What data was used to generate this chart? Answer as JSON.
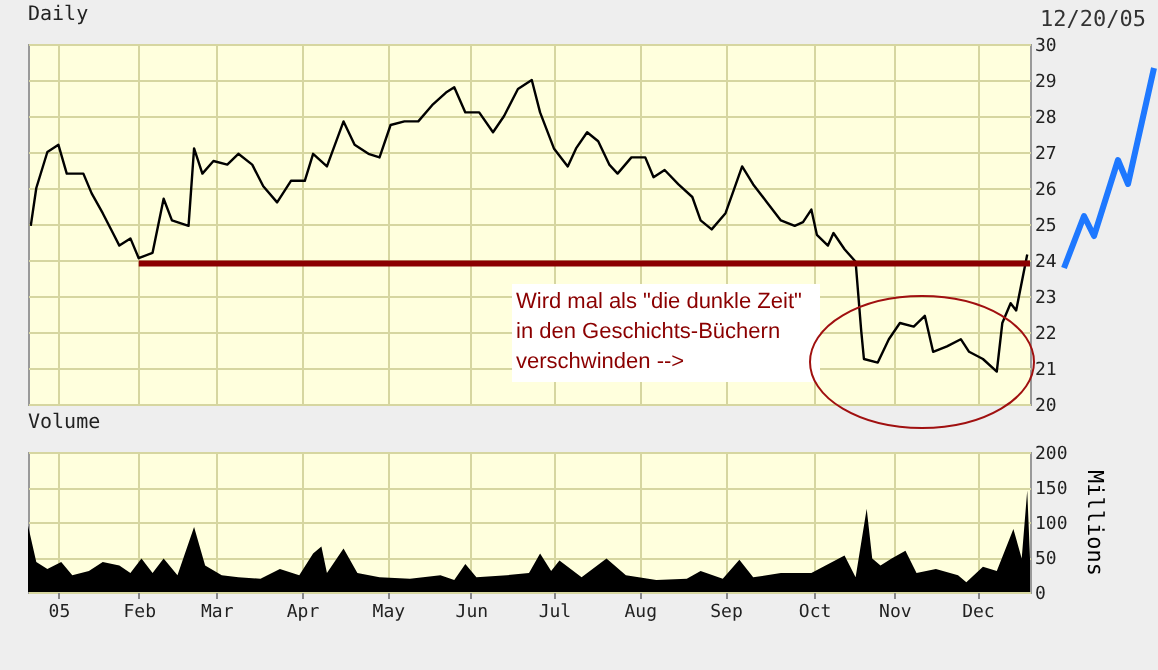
{
  "chart_data": [
    {
      "type": "line",
      "title": "Daily",
      "annotations": [
        "12/20/05",
        "Wird mal als \"die dunkle Zeit\" in den Geschichts-Büchern verschwinden -->"
      ],
      "xlim": [
        "2004-12-23",
        "2005-12-20"
      ],
      "xticks": [
        {
          "value": "2005-01-03",
          "label": null
        },
        {
          "value": "2005-02-01",
          "label": null
        },
        {
          "value": "2005-03-01",
          "label": null
        },
        {
          "value": "2005-04-01",
          "label": null
        },
        {
          "value": "2005-05-02",
          "label": null
        },
        {
          "value": "2005-06-01",
          "label": null
        },
        {
          "value": "2005-07-01",
          "label": null
        },
        {
          "value": "2005-08-01",
          "label": null
        },
        {
          "value": "2005-09-01",
          "label": null
        },
        {
          "value": "2005-10-03",
          "label": null
        },
        {
          "value": "2005-11-01",
          "label": null
        },
        {
          "value": "2005-12-01",
          "label": null
        }
      ],
      "ylim": [
        20,
        30
      ],
      "yticks": [
        20,
        21,
        22,
        23,
        24,
        25,
        26,
        27,
        28,
        29,
        30
      ],
      "grid": true,
      "tick_labels": "y",
      "series": [
        {
          "color": "#000000",
          "x": [
            "2004-12-24",
            "2004-12-26",
            "2004-12-30",
            "2005-01-03",
            "2005-01-06",
            "2005-01-12",
            "2005-01-15",
            "2005-01-19",
            "2005-01-23",
            "2005-01-25",
            "2005-01-29",
            "2005-02-01",
            "2005-02-06",
            "2005-02-10",
            "2005-02-13",
            "2005-02-19",
            "2005-02-21",
            "2005-02-24",
            "2005-02-28",
            "2005-03-05",
            "2005-03-09",
            "2005-03-14",
            "2005-03-18",
            "2005-03-23",
            "2005-03-28",
            "2005-04-02",
            "2005-04-05",
            "2005-04-10",
            "2005-04-16",
            "2005-04-20",
            "2005-04-25",
            "2005-04-29",
            "2005-05-03",
            "2005-05-08",
            "2005-05-13",
            "2005-05-18",
            "2005-05-23",
            "2005-05-26",
            "2005-05-30",
            "2005-06-04",
            "2005-06-09",
            "2005-06-13",
            "2005-06-18",
            "2005-06-23",
            "2005-06-26",
            "2005-07-01",
            "2005-07-06",
            "2005-07-09",
            "2005-07-13",
            "2005-07-17",
            "2005-07-21",
            "2005-07-24",
            "2005-07-29",
            "2005-08-03",
            "2005-08-06",
            "2005-08-10",
            "2005-08-15",
            "2005-08-20",
            "2005-08-23",
            "2005-08-27",
            "2005-09-01",
            "2005-09-04",
            "2005-09-07",
            "2005-09-11",
            "2005-09-16",
            "2005-09-21",
            "2005-09-26",
            "2005-09-29",
            "2005-10-02",
            "2005-10-04",
            "2005-10-08",
            "2005-10-10",
            "2005-10-14",
            "2005-10-18",
            "2005-10-20",
            "2005-10-21",
            "2005-10-26",
            "2005-10-30",
            "2005-11-03",
            "2005-11-08",
            "2005-11-12",
            "2005-11-15",
            "2005-11-20",
            "2005-11-25",
            "2005-11-28",
            "2005-12-03",
            "2005-12-08",
            "2005-12-10",
            "2005-12-13",
            "2005-12-15",
            "2005-12-19"
          ],
          "values": [
            24.95,
            26.0,
            27.0,
            27.2,
            26.4,
            26.4,
            25.85,
            25.3,
            24.7,
            24.4,
            24.6,
            24.05,
            24.2,
            25.7,
            25.1,
            24.95,
            27.1,
            26.4,
            26.75,
            26.65,
            26.95,
            26.65,
            26.05,
            25.6,
            26.2,
            26.2,
            26.95,
            26.6,
            27.85,
            27.2,
            26.95,
            26.85,
            27.75,
            27.85,
            27.85,
            28.3,
            28.65,
            28.8,
            28.1,
            28.1,
            27.55,
            28.0,
            28.75,
            29.0,
            28.1,
            27.1,
            26.6,
            27.1,
            27.55,
            27.3,
            26.65,
            26.4,
            26.85,
            26.85,
            26.3,
            26.5,
            26.1,
            25.75,
            25.1,
            24.85,
            25.3,
            25.95,
            26.6,
            26.1,
            25.6,
            25.1,
            24.95,
            25.05,
            25.4,
            24.7,
            24.4,
            24.75,
            24.3,
            23.95,
            22.05,
            21.25,
            21.15,
            21.8,
            22.25,
            22.15,
            22.45,
            21.45,
            21.6,
            21.8,
            21.45,
            21.25,
            20.9,
            22.25,
            22.8,
            22.6,
            24.15
          ]
        },
        {
          "color": "#8b0000",
          "x": [
            "2005-02-01",
            "2005-12-20"
          ],
          "values": [
            23.9,
            23.9
          ]
        }
      ]
    },
    {
      "type": "area",
      "title": "Volume",
      "ylabel": "Millions",
      "xlim": [
        "2004-12-23",
        "2005-12-20"
      ],
      "xticks": [
        {
          "value": "2005-01-03",
          "label": "05"
        },
        {
          "value": "2005-02-01",
          "label": "Feb"
        },
        {
          "value": "2005-03-01",
          "label": "Mar"
        },
        {
          "value": "2005-04-01",
          "label": "Apr"
        },
        {
          "value": "2005-05-02",
          "label": "May"
        },
        {
          "value": "2005-06-01",
          "label": "Jun"
        },
        {
          "value": "2005-07-01",
          "label": "Jul"
        },
        {
          "value": "2005-08-01",
          "label": "Aug"
        },
        {
          "value": "2005-09-01",
          "label": "Sep"
        },
        {
          "value": "2005-10-03",
          "label": "Oct"
        },
        {
          "value": "2005-11-01",
          "label": "Nov"
        },
        {
          "value": "2005-12-01",
          "label": "Dec"
        }
      ],
      "ylim": [
        0,
        200
      ],
      "yticks": [
        0,
        50,
        100,
        150,
        200
      ],
      "grid": true,
      "series": [
        {
          "color": "#000000",
          "x": [
            "2004-12-23",
            "2004-12-26",
            "2004-12-30",
            "2005-01-04",
            "2005-01-08",
            "2005-01-14",
            "2005-01-19",
            "2005-01-25",
            "2005-01-29",
            "2005-02-02",
            "2005-02-06",
            "2005-02-10",
            "2005-02-15",
            "2005-02-21",
            "2005-02-25",
            "2005-03-03",
            "2005-03-09",
            "2005-03-17",
            "2005-03-24",
            "2005-03-31",
            "2005-04-05",
            "2005-04-08",
            "2005-04-10",
            "2005-04-16",
            "2005-04-21",
            "2005-04-29",
            "2005-05-10",
            "2005-05-21",
            "2005-05-26",
            "2005-05-30",
            "2005-06-03",
            "2005-06-14",
            "2005-06-22",
            "2005-06-26",
            "2005-06-30",
            "2005-07-03",
            "2005-07-11",
            "2005-07-20",
            "2005-07-27",
            "2005-08-07",
            "2005-08-18",
            "2005-08-23",
            "2005-08-31",
            "2005-09-06",
            "2005-09-11",
            "2005-09-21",
            "2005-10-02",
            "2005-10-14",
            "2005-10-18",
            "2005-10-22",
            "2005-10-24",
            "2005-10-27",
            "2005-10-31",
            "2005-11-05",
            "2005-11-09",
            "2005-11-16",
            "2005-11-24",
            "2005-11-27",
            "2005-12-03",
            "2005-12-08",
            "2005-12-14",
            "2005-12-17",
            "2005-12-19",
            "2005-12-20"
          ],
          "values": [
            95,
            43,
            33,
            43,
            24,
            30,
            43,
            38,
            27,
            48,
            27,
            48,
            24,
            93,
            38,
            24,
            21,
            19,
            33,
            24,
            55,
            65,
            27,
            62,
            27,
            21,
            19,
            24,
            17,
            40,
            21,
            24,
            27,
            55,
            30,
            45,
            21,
            48,
            24,
            17,
            19,
            30,
            19,
            46,
            21,
            27,
            27,
            52,
            21,
            119,
            48,
            38,
            48,
            59,
            27,
            33,
            24,
            14,
            36,
            30,
            90,
            48,
            145,
            48
          ]
        }
      ]
    }
  ]
}
